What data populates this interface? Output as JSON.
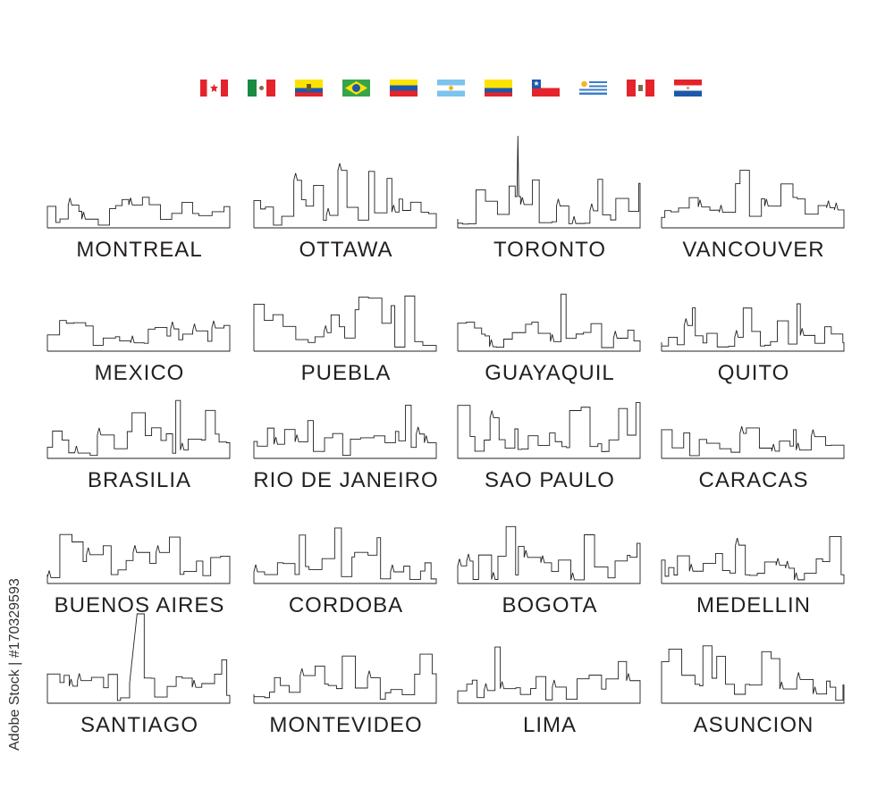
{
  "flags": [
    {
      "icon": "canada-flag-icon"
    },
    {
      "icon": "mexico-flag-icon"
    },
    {
      "icon": "ecuador-flag-icon"
    },
    {
      "icon": "brazil-flag-icon"
    },
    {
      "icon": "venezuela-flag-icon"
    },
    {
      "icon": "argentina-flag-icon"
    },
    {
      "icon": "colombia-flag-icon"
    },
    {
      "icon": "chile-flag-icon"
    },
    {
      "icon": "uruguay-flag-icon"
    },
    {
      "icon": "peru-flag-icon"
    },
    {
      "icon": "paraguay-flag-icon"
    }
  ],
  "cities": [
    "MONTREAL",
    "OTTAWA",
    "TORONTO",
    "VANCOUVER",
    "MEXICO",
    "PUEBLA",
    "GUAYAQUIL",
    "QUITO",
    "BRASILIA",
    "RIO DE JANEIRO",
    "SAO PAULO",
    "CARACAS",
    "BUENOS AIRES",
    "CORDOBA",
    "BOGOTA",
    "MEDELLIN",
    "SANTIAGO",
    "MONTEVIDEO",
    "LIMA",
    "ASUNCION"
  ],
  "watermark": "Adobe Stock | #170329593",
  "line_color": "#231f20"
}
